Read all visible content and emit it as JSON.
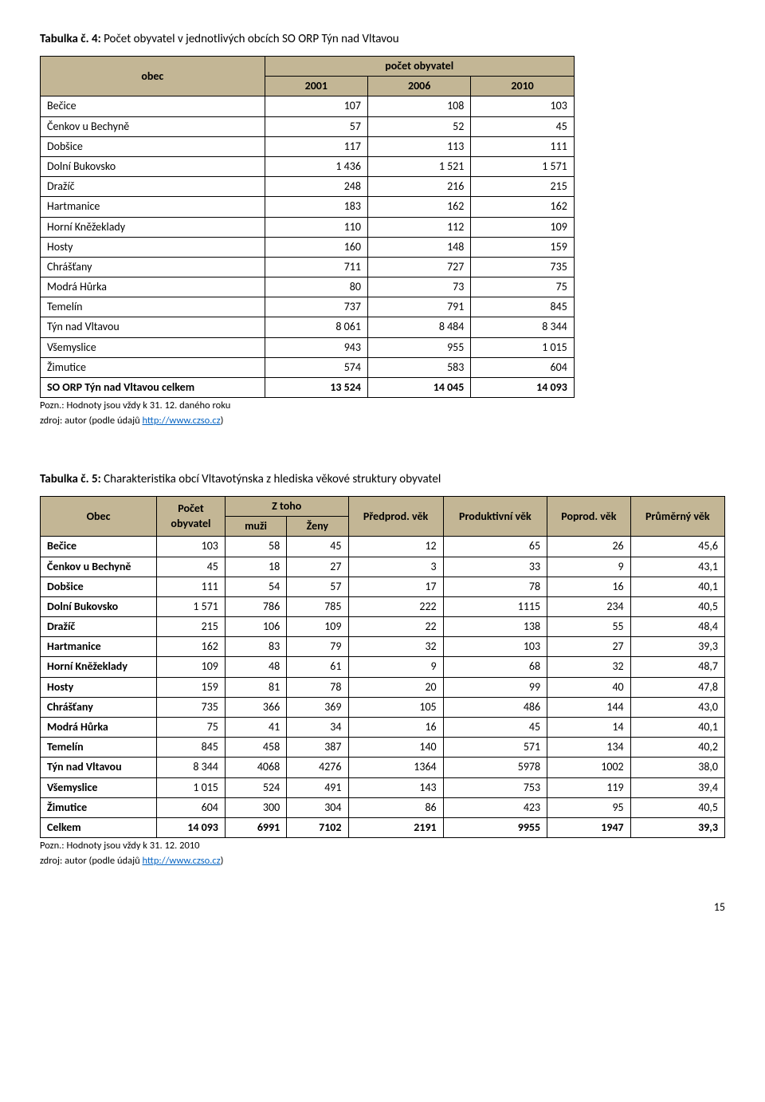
{
  "t1": {
    "caption_bold": "Tabulka č. 4:",
    "caption_rest": " Počet obyvatel v jednotlivých obcích SO ORP Týn nad Vltavou",
    "h_obec": "obec",
    "h_group": "počet obyvatel",
    "years": [
      "2001",
      "2006",
      "2010"
    ],
    "rows": [
      {
        "label": "Bečice",
        "v": [
          "107",
          "108",
          "103"
        ],
        "bold": false
      },
      {
        "label": "Čenkov u Bechyně",
        "v": [
          "57",
          "52",
          "45"
        ],
        "bold": false
      },
      {
        "label": "Dobšice",
        "v": [
          "117",
          "113",
          "111"
        ],
        "bold": false
      },
      {
        "label": "Dolní Bukovsko",
        "v": [
          "1 436",
          "1 521",
          "1 571"
        ],
        "bold": false
      },
      {
        "label": "Dražíč",
        "v": [
          "248",
          "216",
          "215"
        ],
        "bold": false
      },
      {
        "label": "Hartmanice",
        "v": [
          "183",
          "162",
          "162"
        ],
        "bold": false
      },
      {
        "label": "Horní Kněžeklady",
        "v": [
          "110",
          "112",
          "109"
        ],
        "bold": false
      },
      {
        "label": "Hosty",
        "v": [
          "160",
          "148",
          "159"
        ],
        "bold": false
      },
      {
        "label": "Chrášťany",
        "v": [
          "711",
          "727",
          "735"
        ],
        "bold": false
      },
      {
        "label": "Modrá Hůrka",
        "v": [
          "80",
          "73",
          "75"
        ],
        "bold": false
      },
      {
        "label": "Temelín",
        "v": [
          "737",
          "791",
          "845"
        ],
        "bold": false
      },
      {
        "label": "Týn nad Vltavou",
        "v": [
          "8 061",
          "8 484",
          "8 344"
        ],
        "bold": false
      },
      {
        "label": "Všemyslice",
        "v": [
          "943",
          "955",
          "1 015"
        ],
        "bold": false
      },
      {
        "label": "Žimutice",
        "v": [
          "574",
          "583",
          "604"
        ],
        "bold": false
      },
      {
        "label": "SO ORP Týn nad Vltavou celkem",
        "v": [
          "13 524",
          "14 045",
          "14 093"
        ],
        "bold": true
      }
    ],
    "foot1": "Pozn.: Hodnoty jsou vždy k 31. 12. daného roku",
    "foot2_pre": "zdroj: autor (podle údajů ",
    "foot2_link": "http://www.czso.cz",
    "foot2_post": ")"
  },
  "t2": {
    "caption_bold": "Tabulka č. 5:",
    "caption_rest": " Charakteristika obcí Vltavotýnska z hlediska věkové struktury obyvatel",
    "h_obec": "Obec",
    "h_pocet": "Počet obyvatel",
    "h_ztoho": "Z toho",
    "h_muzi": "muži",
    "h_zeny": "Ženy",
    "h_pred": "Předprod. věk",
    "h_prod": "Produktivní věk",
    "h_pop": "Poprod. věk",
    "h_prum": "Průměrný věk",
    "rows": [
      {
        "label": "Bečice",
        "v": [
          "103",
          "58",
          "45",
          "12",
          "65",
          "26",
          "45,6"
        ],
        "bold": false
      },
      {
        "label": "Čenkov u Bechyně",
        "v": [
          "45",
          "18",
          "27",
          "3",
          "33",
          "9",
          "43,1"
        ],
        "bold": false
      },
      {
        "label": "Dobšice",
        "v": [
          "111",
          "54",
          "57",
          "17",
          "78",
          "16",
          "40,1"
        ],
        "bold": false
      },
      {
        "label": "Dolní Bukovsko",
        "v": [
          "1 571",
          "786",
          "785",
          "222",
          "1115",
          "234",
          "40,5"
        ],
        "bold": false
      },
      {
        "label": "Dražíč",
        "v": [
          "215",
          "106",
          "109",
          "22",
          "138",
          "55",
          "48,4"
        ],
        "bold": false
      },
      {
        "label": "Hartmanice",
        "v": [
          "162",
          "83",
          "79",
          "32",
          "103",
          "27",
          "39,3"
        ],
        "bold": false
      },
      {
        "label": "Horní Kněžeklady",
        "v": [
          "109",
          "48",
          "61",
          "9",
          "68",
          "32",
          "48,7"
        ],
        "bold": false
      },
      {
        "label": "Hosty",
        "v": [
          "159",
          "81",
          "78",
          "20",
          "99",
          "40",
          "47,8"
        ],
        "bold": false
      },
      {
        "label": "Chrášťany",
        "v": [
          "735",
          "366",
          "369",
          "105",
          "486",
          "144",
          "43,0"
        ],
        "bold": false
      },
      {
        "label": "Modrá Hůrka",
        "v": [
          "75",
          "41",
          "34",
          "16",
          "45",
          "14",
          "40,1"
        ],
        "bold": false
      },
      {
        "label": "Temelín",
        "v": [
          "845",
          "458",
          "387",
          "140",
          "571",
          "134",
          "40,2"
        ],
        "bold": false
      },
      {
        "label": "Týn nad Vltavou",
        "v": [
          "8 344",
          "4068",
          "4276",
          "1364",
          "5978",
          "1002",
          "38,0"
        ],
        "bold": false
      },
      {
        "label": "Všemyslice",
        "v": [
          "1 015",
          "524",
          "491",
          "143",
          "753",
          "119",
          "39,4"
        ],
        "bold": false
      },
      {
        "label": "Žimutice",
        "v": [
          "604",
          "300",
          "304",
          "86",
          "423",
          "95",
          "40,5"
        ],
        "bold": false
      },
      {
        "label": "Celkem",
        "v": [
          "14 093",
          "6991",
          "7102",
          "2191",
          "9955",
          "1947",
          "39,3"
        ],
        "bold": true
      }
    ],
    "foot1": "Pozn.: Hodnoty jsou vždy k 31. 12. 2010",
    "foot2_pre": "zdroj: autor (podle údajů ",
    "foot2_link": "http://www.czso.cz",
    "foot2_post": ")"
  },
  "page_number": "15"
}
